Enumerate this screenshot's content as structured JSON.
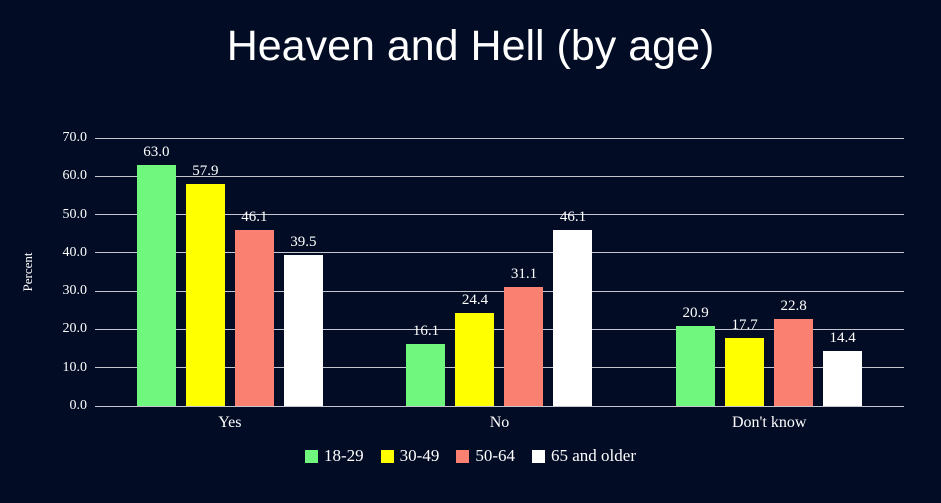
{
  "title": "Heaven and Hell (by age)",
  "colors": {
    "background": "#030C25",
    "gridline": "#C6C6CE",
    "text": "#FFFFFF",
    "series_18_29": "#70F87E",
    "series_30_49": "#FFFF00",
    "series_50_64": "#FA8072",
    "series_65_older": "#FFFFFF"
  },
  "chart_data": {
    "type": "bar",
    "title": "Heaven and Hell (by age)",
    "categories": [
      "Yes",
      "No",
      "Don't know"
    ],
    "series": [
      {
        "name": "18-29",
        "color": "#70F87E",
        "values": [
          63.0,
          16.1,
          20.9
        ]
      },
      {
        "name": "30-49",
        "color": "#FFFF00",
        "values": [
          57.9,
          24.4,
          17.7
        ]
      },
      {
        "name": "50-64",
        "color": "#FA8072",
        "values": [
          46.1,
          31.1,
          22.8
        ]
      },
      {
        "name": "65 and older",
        "color": "#FFFFFF",
        "values": [
          39.5,
          46.1,
          14.4
        ]
      }
    ],
    "xlabel": "",
    "ylabel": "Percent",
    "ylim": [
      0,
      70
    ],
    "ytick_step": 10,
    "ytick_labels": [
      "0.0",
      "10.0",
      "20.0",
      "30.0",
      "40.0",
      "50.0",
      "60.0",
      "70.0"
    ],
    "grid": true,
    "value_labels": true,
    "value_label_format": "one_decimal",
    "legend_position": "bottom"
  }
}
